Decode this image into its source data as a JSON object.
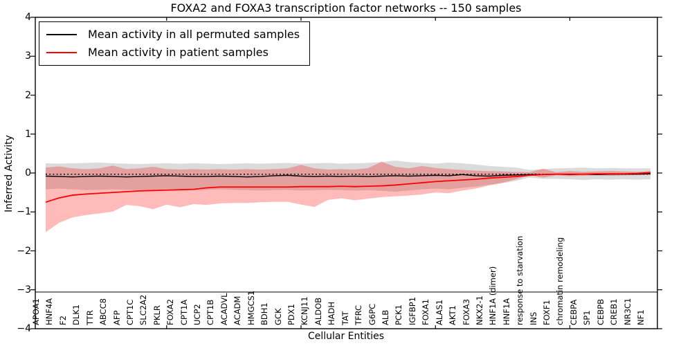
{
  "title": "FOXA2 and FOXA3 transcription factor networks -- 150 samples",
  "legend": {
    "items": [
      {
        "label": "Mean activity in all permuted samples",
        "color": "#000000"
      },
      {
        "label": "Mean activity in patient samples",
        "color": "#ff0000"
      }
    ]
  },
  "axes": {
    "ylabel": "Inferred Activity",
    "xlabel": "Cellular Entities",
    "ytick_labels": [
      "4",
      "3",
      "2",
      "1",
      "0",
      "−1",
      "−2",
      "−3",
      "−4"
    ],
    "ytick_values": [
      4,
      3,
      2,
      1,
      0,
      -1,
      -2,
      -3,
      -4
    ],
    "ylim": [
      -4,
      4
    ],
    "grid": "off",
    "legend_position": "upper-left"
  },
  "chart_data": {
    "type": "line",
    "title": "FOXA2 and FOXA3 transcription factor networks -- 150 samples",
    "xlabel": "Cellular Entities",
    "ylabel": "Inferred Activity",
    "ylim": [
      -4,
      4
    ],
    "categories": [
      "APOA1",
      "HNF4A",
      "F2",
      "DLK1",
      "TTR",
      "ABCC8",
      "AFP",
      "CPT1C",
      "SLC2A2",
      "PKLR",
      "FOXA2",
      "CPT1A",
      "UCP2",
      "CPT1B",
      "ACADVL",
      "ACADM",
      "HMGCS1",
      "BDH1",
      "GCK",
      "PDX1",
      "KCNJ11",
      "ALDOB",
      "HADH",
      "TAT",
      "TFRC",
      "G6PC",
      "ALB",
      "PCK1",
      "IGFBP1",
      "FOXA1",
      "ALAS1",
      "AKT1",
      "FOXA3",
      "NKX2-1",
      "HNF1A (dimer)",
      "HNF1A",
      "response to starvation",
      "INS",
      "FOXF1",
      "chromatin remodeling",
      "CEBPA",
      "SP1",
      "CEBPB",
      "CREB1",
      "NR3C1",
      "NF1"
    ],
    "baseline_dotted": -0.03,
    "series": [
      {
        "name": "Mean activity in all permuted samples",
        "color": "#000000",
        "values": [
          -0.08,
          -0.09,
          -0.1,
          -0.09,
          -0.08,
          -0.09,
          -0.1,
          -0.09,
          -0.08,
          -0.07,
          -0.08,
          -0.09,
          -0.09,
          -0.08,
          -0.09,
          -0.1,
          -0.09,
          -0.07,
          -0.06,
          -0.08,
          -0.09,
          -0.08,
          -0.09,
          -0.08,
          -0.09,
          -0.08,
          -0.07,
          -0.08,
          -0.07,
          -0.06,
          -0.07,
          -0.04,
          -0.07,
          -0.08,
          -0.06,
          -0.05,
          -0.04,
          -0.04,
          -0.03,
          -0.04,
          -0.03,
          -0.04,
          -0.03,
          -0.03,
          -0.03,
          -0.02
        ],
        "band_upper": [
          0.25,
          0.24,
          0.25,
          0.26,
          0.27,
          0.25,
          0.24,
          0.23,
          0.24,
          0.25,
          0.24,
          0.25,
          0.24,
          0.23,
          0.24,
          0.25,
          0.24,
          0.25,
          0.26,
          0.24,
          0.25,
          0.26,
          0.24,
          0.25,
          0.26,
          0.28,
          0.32,
          0.28,
          0.26,
          0.24,
          0.27,
          0.25,
          0.22,
          0.18,
          0.16,
          0.14,
          0.08,
          0.1,
          0.12,
          0.13,
          0.14,
          0.12,
          0.13,
          0.12,
          0.12,
          0.12
        ],
        "band_lower": [
          -0.42,
          -0.4,
          -0.42,
          -0.44,
          -0.43,
          -0.42,
          -0.43,
          -0.44,
          -0.43,
          -0.42,
          -0.43,
          -0.44,
          -0.43,
          -0.42,
          -0.43,
          -0.44,
          -0.45,
          -0.44,
          -0.43,
          -0.45,
          -0.44,
          -0.43,
          -0.44,
          -0.45,
          -0.44,
          -0.46,
          -0.48,
          -0.45,
          -0.42,
          -0.4,
          -0.42,
          -0.38,
          -0.35,
          -0.3,
          -0.26,
          -0.2,
          -0.12,
          -0.15,
          -0.15,
          -0.16,
          -0.18,
          -0.16,
          -0.17,
          -0.16,
          -0.17,
          -0.16
        ],
        "band_color": "#999999",
        "band_opacity": 0.35
      },
      {
        "name": "Mean activity in patient samples",
        "color": "#ff0000",
        "values": [
          -0.75,
          -0.64,
          -0.57,
          -0.54,
          -0.52,
          -0.5,
          -0.48,
          -0.46,
          -0.45,
          -0.44,
          -0.43,
          -0.42,
          -0.38,
          -0.36,
          -0.36,
          -0.36,
          -0.36,
          -0.36,
          -0.36,
          -0.35,
          -0.35,
          -0.35,
          -0.34,
          -0.35,
          -0.34,
          -0.33,
          -0.31,
          -0.28,
          -0.25,
          -0.22,
          -0.2,
          -0.18,
          -0.16,
          -0.13,
          -0.11,
          -0.09,
          -0.06,
          -0.04,
          -0.03,
          -0.03,
          -0.03,
          -0.02,
          -0.02,
          -0.02,
          -0.01,
          0.01
        ],
        "band_upper": [
          0.14,
          0.17,
          0.12,
          0.1,
          0.12,
          0.19,
          0.1,
          0.12,
          0.16,
          0.1,
          0.09,
          0.1,
          0.09,
          0.1,
          0.09,
          0.1,
          0.09,
          0.1,
          0.12,
          0.21,
          0.12,
          0.09,
          0.1,
          0.09,
          0.13,
          0.29,
          0.16,
          0.12,
          0.18,
          0.13,
          0.1,
          0.08,
          0.06,
          0.05,
          0.04,
          0.03,
          0.02,
          0.11,
          0.02,
          0.05,
          0.03,
          0.04,
          0.05,
          0.04,
          0.03,
          0.05
        ],
        "band_lower": [
          -1.52,
          -1.28,
          -1.14,
          -1.08,
          -1.04,
          -0.99,
          -0.82,
          -0.85,
          -0.93,
          -0.81,
          -0.88,
          -0.8,
          -0.82,
          -0.78,
          -0.77,
          -0.77,
          -0.75,
          -0.74,
          -0.74,
          -0.81,
          -0.87,
          -0.69,
          -0.65,
          -0.7,
          -0.66,
          -0.62,
          -0.6,
          -0.58,
          -0.55,
          -0.5,
          -0.52,
          -0.45,
          -0.4,
          -0.32,
          -0.25,
          -0.16,
          -0.06,
          -0.12,
          -0.06,
          -0.08,
          -0.07,
          -0.06,
          -0.07,
          -0.06,
          -0.05,
          -0.04
        ],
        "band_color": "#ff0000",
        "band_opacity": 0.27
      }
    ],
    "top_axis_tick_indices": [
      9,
      19,
      29,
      39
    ]
  }
}
